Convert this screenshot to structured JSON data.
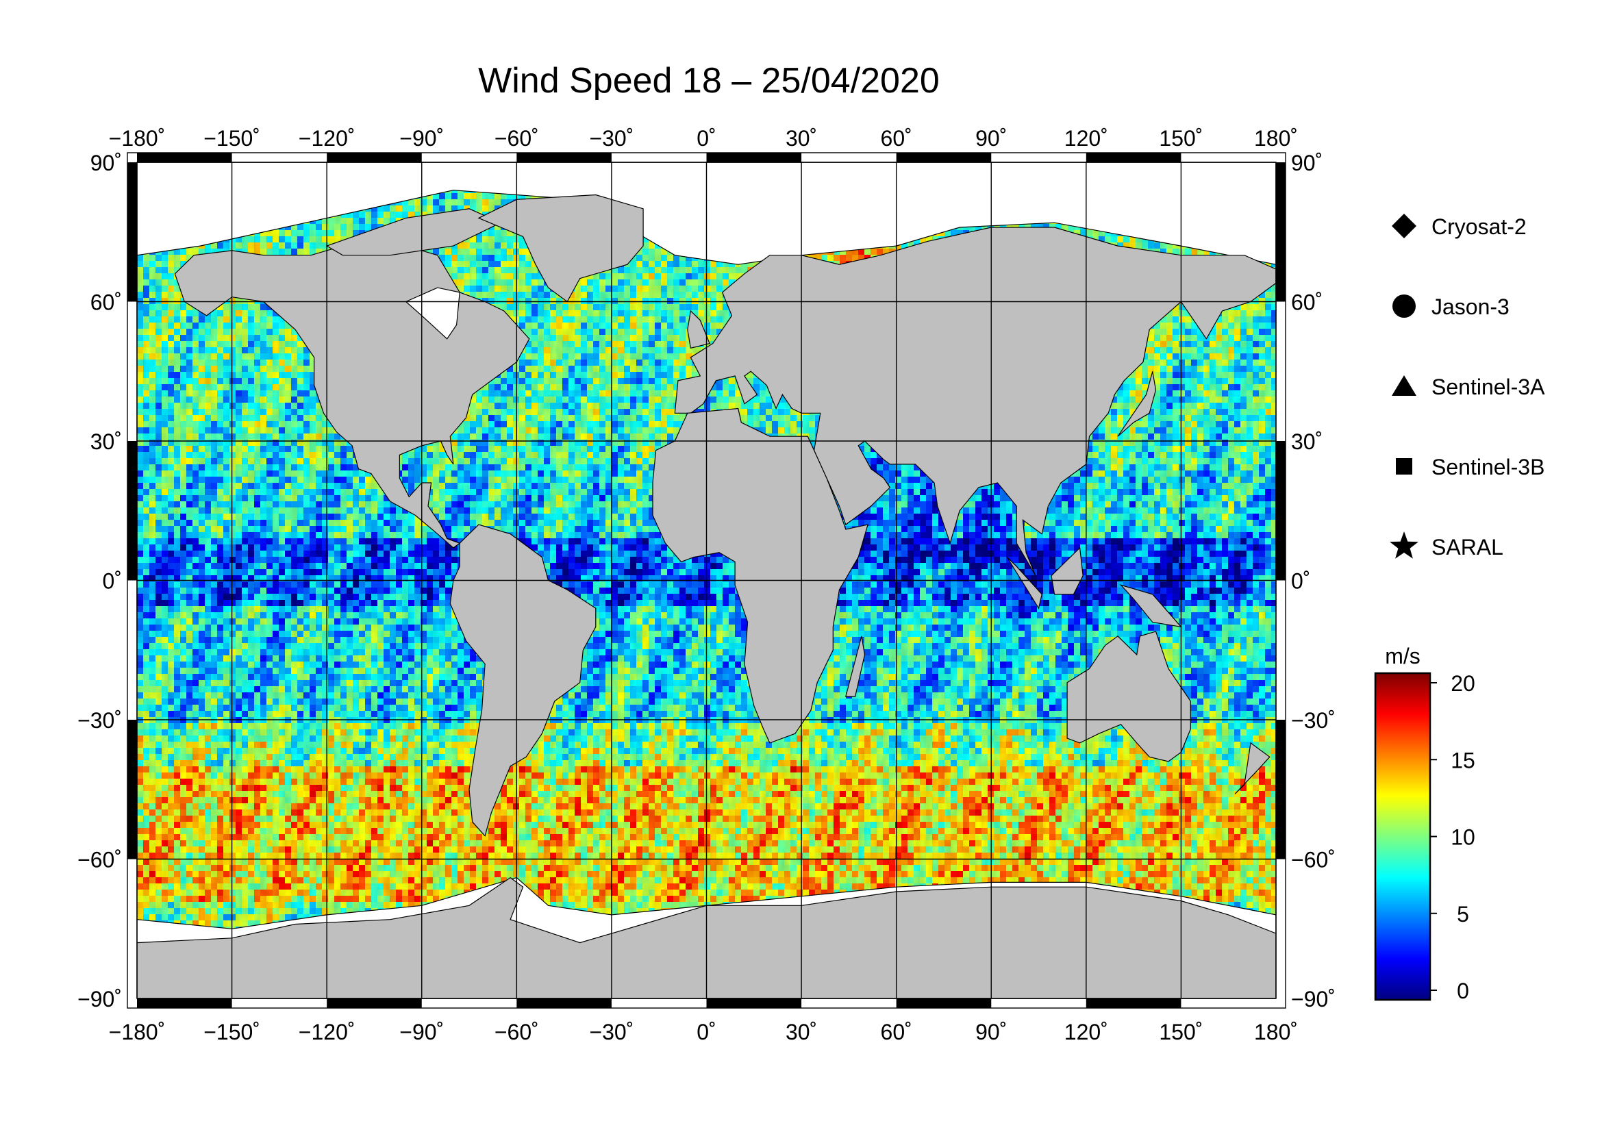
{
  "title": "Wind Speed 18 – 25/04/2020",
  "lon_ticks": [
    {
      "value": -180,
      "label": "−180˚"
    },
    {
      "value": -150,
      "label": "−150˚"
    },
    {
      "value": -120,
      "label": "−120˚"
    },
    {
      "value": -90,
      "label": "−90˚"
    },
    {
      "value": -60,
      "label": "−60˚"
    },
    {
      "value": -30,
      "label": "−30˚"
    },
    {
      "value": 0,
      "label": "0˚"
    },
    {
      "value": 30,
      "label": "30˚"
    },
    {
      "value": 60,
      "label": "60˚"
    },
    {
      "value": 90,
      "label": "90˚"
    },
    {
      "value": 120,
      "label": "120˚"
    },
    {
      "value": 150,
      "label": "150˚"
    },
    {
      "value": 180,
      "label": "180˚"
    }
  ],
  "lat_ticks": [
    {
      "value": 90,
      "label": "90˚"
    },
    {
      "value": 60,
      "label": "60˚"
    },
    {
      "value": 30,
      "label": "30˚"
    },
    {
      "value": 0,
      "label": "0˚"
    },
    {
      "value": -30,
      "label": "−30˚"
    },
    {
      "value": -60,
      "label": "−60˚"
    },
    {
      "value": -90,
      "label": "−90˚"
    }
  ],
  "satellites": [
    {
      "name": "Cryosat-2",
      "symbol": "diamond"
    },
    {
      "name": "Jason-3",
      "symbol": "circle"
    },
    {
      "name": "Sentinel-3A",
      "symbol": "triangle"
    },
    {
      "name": "Sentinel-3B",
      "symbol": "square"
    },
    {
      "name": "SARAL",
      "symbol": "star"
    }
  ],
  "colorbar": {
    "unit": "m/s",
    "min": 0,
    "max": 20,
    "ticks": [
      {
        "value": 20,
        "label": "20"
      },
      {
        "value": 15,
        "label": "15"
      },
      {
        "value": 10,
        "label": "10"
      },
      {
        "value": 5,
        "label": "5"
      },
      {
        "value": 0,
        "label": "0"
      }
    ],
    "colors": [
      "#00007f",
      "#0000ff",
      "#007fff",
      "#00ffff",
      "#7fff7f",
      "#ffff00",
      "#ff7f00",
      "#ff0000",
      "#7f0000"
    ]
  },
  "colors": {
    "land": "#bfbfbf",
    "ice": "#ffffff",
    "frame": "#000000"
  }
}
